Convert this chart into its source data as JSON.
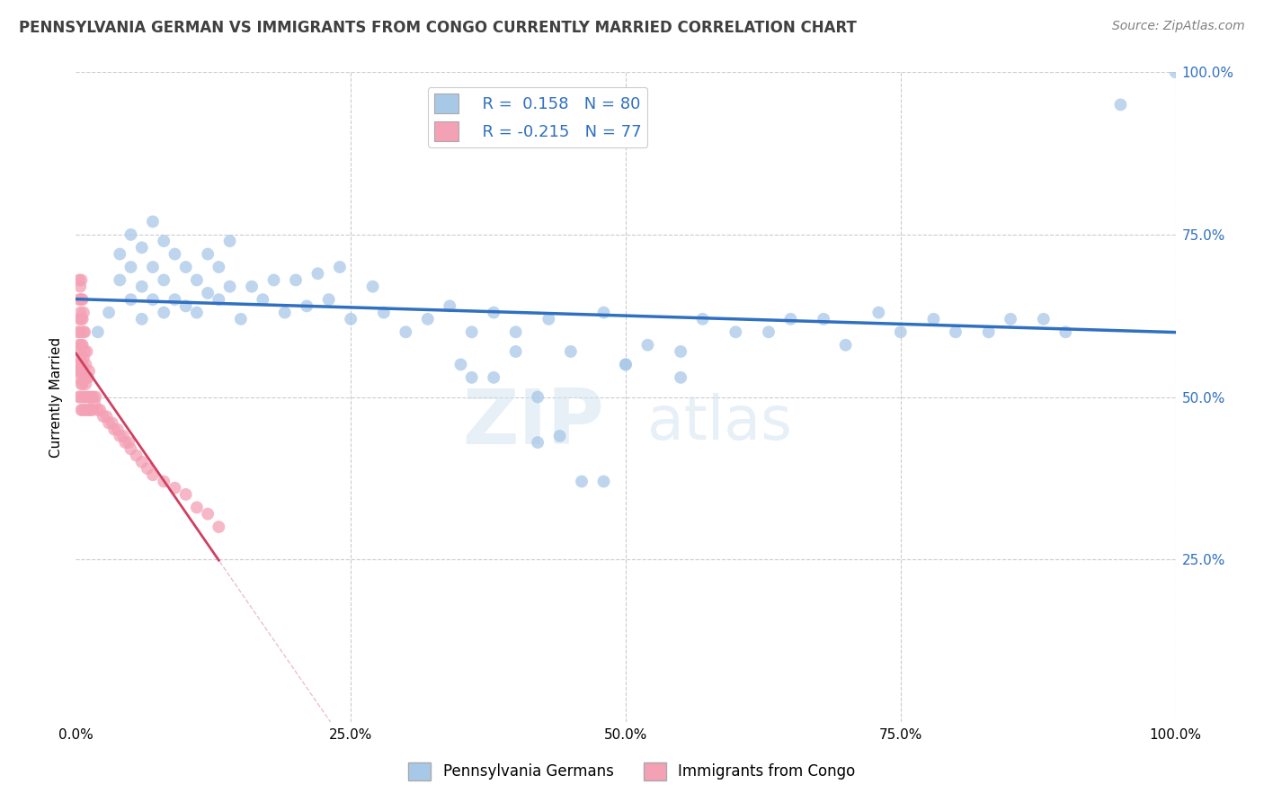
{
  "title": "PENNSYLVANIA GERMAN VS IMMIGRANTS FROM CONGO CURRENTLY MARRIED CORRELATION CHART",
  "source": "Source: ZipAtlas.com",
  "ylabel": "Currently Married",
  "watermark": "ZIPatlas",
  "xlim": [
    0.0,
    1.0
  ],
  "ylim": [
    0.0,
    1.0
  ],
  "xticks": [
    0.0,
    0.25,
    0.5,
    0.75,
    1.0
  ],
  "yticks": [
    0.0,
    0.25,
    0.5,
    0.75,
    1.0
  ],
  "xtick_labels": [
    "0.0%",
    "25.0%",
    "50.0%",
    "75.0%",
    "100.0%"
  ],
  "ytick_labels": [
    "",
    "25.0%",
    "50.0%",
    "75.0%",
    "100.0%"
  ],
  "blue_R": 0.158,
  "blue_N": 80,
  "pink_R": -0.215,
  "pink_N": 77,
  "blue_color": "#a8c8e8",
  "pink_color": "#f4a0b5",
  "blue_line_color": "#3070c0",
  "pink_line_color": "#d04060",
  "pink_dash_color": "#e8b0c0",
  "grid_color": "#cccccc",
  "background_color": "#ffffff",
  "legend_label_blue": "Pennsylvania Germans",
  "legend_label_pink": "Immigrants from Congo",
  "blue_scatter_x": [
    0.02,
    0.03,
    0.04,
    0.04,
    0.05,
    0.05,
    0.05,
    0.06,
    0.06,
    0.06,
    0.07,
    0.07,
    0.07,
    0.08,
    0.08,
    0.08,
    0.09,
    0.09,
    0.1,
    0.1,
    0.11,
    0.11,
    0.12,
    0.12,
    0.13,
    0.13,
    0.14,
    0.14,
    0.15,
    0.16,
    0.17,
    0.18,
    0.19,
    0.2,
    0.21,
    0.22,
    0.23,
    0.24,
    0.25,
    0.27,
    0.28,
    0.3,
    0.32,
    0.34,
    0.36,
    0.38,
    0.4,
    0.43,
    0.45,
    0.48,
    0.5,
    0.52,
    0.55,
    0.57,
    0.6,
    0.63,
    0.65,
    0.68,
    0.7,
    0.73,
    0.75,
    0.78,
    0.8,
    0.83,
    0.85,
    0.88,
    0.9,
    0.5,
    0.55,
    0.35,
    0.36,
    0.4,
    0.42,
    0.44,
    0.46,
    0.48,
    0.38,
    0.42,
    1.0,
    0.95
  ],
  "blue_scatter_y": [
    0.6,
    0.63,
    0.68,
    0.72,
    0.65,
    0.7,
    0.75,
    0.62,
    0.67,
    0.73,
    0.65,
    0.7,
    0.77,
    0.63,
    0.68,
    0.74,
    0.65,
    0.72,
    0.64,
    0.7,
    0.63,
    0.68,
    0.66,
    0.72,
    0.65,
    0.7,
    0.67,
    0.74,
    0.62,
    0.67,
    0.65,
    0.68,
    0.63,
    0.68,
    0.64,
    0.69,
    0.65,
    0.7,
    0.62,
    0.67,
    0.63,
    0.6,
    0.62,
    0.64,
    0.6,
    0.63,
    0.6,
    0.62,
    0.57,
    0.63,
    0.55,
    0.58,
    0.57,
    0.62,
    0.6,
    0.6,
    0.62,
    0.62,
    0.58,
    0.63,
    0.6,
    0.62,
    0.6,
    0.6,
    0.62,
    0.62,
    0.6,
    0.55,
    0.53,
    0.55,
    0.53,
    0.57,
    0.43,
    0.44,
    0.37,
    0.37,
    0.53,
    0.5,
    1.0,
    0.95
  ],
  "pink_scatter_x": [
    0.002,
    0.002,
    0.003,
    0.003,
    0.003,
    0.003,
    0.003,
    0.003,
    0.003,
    0.004,
    0.004,
    0.004,
    0.004,
    0.004,
    0.004,
    0.004,
    0.005,
    0.005,
    0.005,
    0.005,
    0.005,
    0.005,
    0.005,
    0.006,
    0.006,
    0.006,
    0.006,
    0.006,
    0.006,
    0.007,
    0.007,
    0.007,
    0.007,
    0.007,
    0.008,
    0.008,
    0.008,
    0.008,
    0.009,
    0.009,
    0.009,
    0.01,
    0.01,
    0.01,
    0.011,
    0.011,
    0.012,
    0.012,
    0.013,
    0.014,
    0.015,
    0.016,
    0.017,
    0.018,
    0.02,
    0.022,
    0.025,
    0.028,
    0.03,
    0.033,
    0.035,
    0.038,
    0.04,
    0.043,
    0.045,
    0.048,
    0.05,
    0.055,
    0.06,
    0.065,
    0.07,
    0.08,
    0.09,
    0.1,
    0.11,
    0.12,
    0.13
  ],
  "pink_scatter_y": [
    0.55,
    0.6,
    0.5,
    0.54,
    0.58,
    0.62,
    0.65,
    0.68,
    0.53,
    0.5,
    0.54,
    0.57,
    0.6,
    0.63,
    0.67,
    0.56,
    0.48,
    0.52,
    0.55,
    0.58,
    0.62,
    0.65,
    0.68,
    0.48,
    0.52,
    0.55,
    0.58,
    0.62,
    0.65,
    0.5,
    0.53,
    0.56,
    0.6,
    0.63,
    0.5,
    0.53,
    0.57,
    0.6,
    0.48,
    0.52,
    0.55,
    0.5,
    0.53,
    0.57,
    0.48,
    0.53,
    0.5,
    0.54,
    0.48,
    0.5,
    0.48,
    0.5,
    0.49,
    0.5,
    0.48,
    0.48,
    0.47,
    0.47,
    0.46,
    0.46,
    0.45,
    0.45,
    0.44,
    0.44,
    0.43,
    0.43,
    0.42,
    0.41,
    0.4,
    0.39,
    0.38,
    0.37,
    0.36,
    0.35,
    0.33,
    0.32,
    0.3
  ]
}
